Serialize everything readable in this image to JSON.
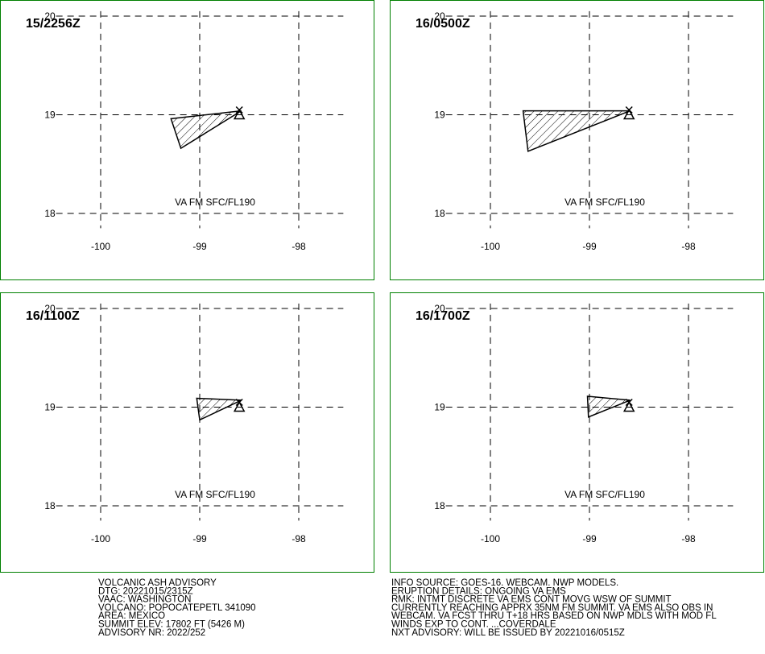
{
  "panels": [
    {
      "time": "15/2256Z",
      "label": "VA FM SFC/FL190",
      "polygon": [
        [
          -99.29,
          18.96
        ],
        [
          -98.58,
          19.04
        ],
        [
          -99.19,
          18.66
        ]
      ]
    },
    {
      "time": "16/0500Z",
      "label": "VA FM SFC/FL190",
      "polygon": [
        [
          -99.67,
          19.04
        ],
        [
          -98.59,
          19.04
        ],
        [
          -99.62,
          18.63
        ]
      ]
    },
    {
      "time": "16/1100Z",
      "label": "VA FM SFC/FL190",
      "polygon": [
        [
          -99.03,
          19.09
        ],
        [
          -98.58,
          19.07
        ],
        [
          -99.0,
          18.87
        ]
      ]
    },
    {
      "time": "16/1700Z",
      "label": "VA FM SFC/FL190",
      "polygon": [
        [
          -99.02,
          19.11
        ],
        [
          -98.59,
          19.07
        ],
        [
          -99.01,
          18.9
        ]
      ]
    }
  ],
  "lon_ticks": [
    -100,
    -99,
    -98
  ],
  "lat_ticks": [
    18,
    19,
    20
  ],
  "volcano": [
    -98.6,
    19.0
  ],
  "footer_left": [
    "VOLCANIC ASH ADVISORY",
    "DTG: 20221015/2315Z",
    "VAAC: WASHINGTON",
    "VOLCANO: POPOCATEPETL 341090",
    "AREA: MEXICO",
    "SUMMIT ELEV: 17802 FT (5426 M)",
    "ADVISORY NR: 2022/252"
  ],
  "footer_right": [
    "INFO SOURCE: GOES-16. WEBCAM. NWP MODELS.",
    "ERUPTION DETAILS: ONGOING VA EMS",
    "RMK: INTMT DISCRETE VA EMS CONT MOVG WSW OF SUMMIT",
    "CURRENTLY REACHING APPRX 35NM FM SUMMIT. VA EMS ALSO OBS IN",
    "WEBCAM. VA FCST THRU T+18 HRS BASED ON NWP MDLS WITH MOD FL",
    "WINDS EXP TO CONT. ...COVERDALE",
    "NXT ADVISORY: WILL BE ISSUED BY 20221016/0515Z"
  ]
}
